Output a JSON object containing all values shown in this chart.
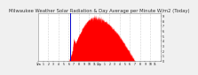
{
  "title": "Milwaukee Weather Solar Radiation & Day Average per Minute W/m2 (Today)",
  "title_fontsize": 3.8,
  "title_color": "#333333",
  "bg_color": "#f0f0f0",
  "plot_bg_color": "#ffffff",
  "grid_color": "#aaaaaa",
  "bar_color": "#ff0000",
  "blue_line_color": "#0000cc",
  "x_tick_labels": [
    "12a",
    "1",
    "2",
    "3",
    "4",
    "5",
    "6",
    "7",
    "8",
    "9",
    "10",
    "11",
    "12p",
    "1",
    "2",
    "3",
    "4",
    "5",
    "6",
    "7",
    "8",
    "9",
    "10",
    "11",
    ""
  ],
  "y_tick_labels": [
    "9",
    "8",
    "7",
    "6",
    "5",
    "4",
    "3",
    "2",
    "1",
    "0"
  ],
  "ylim": [
    0,
    950
  ],
  "xlim": [
    0,
    1440
  ],
  "num_minutes": 1440,
  "sunrise": 360,
  "sunset": 1140,
  "peak_minute": 660,
  "peak_value": 870,
  "blue_minute": 375,
  "grid_positions": [
    120,
    240,
    360,
    480,
    600,
    720,
    840,
    960,
    1080,
    1200,
    1320
  ],
  "spike_minute": 420,
  "spike_height": 170
}
